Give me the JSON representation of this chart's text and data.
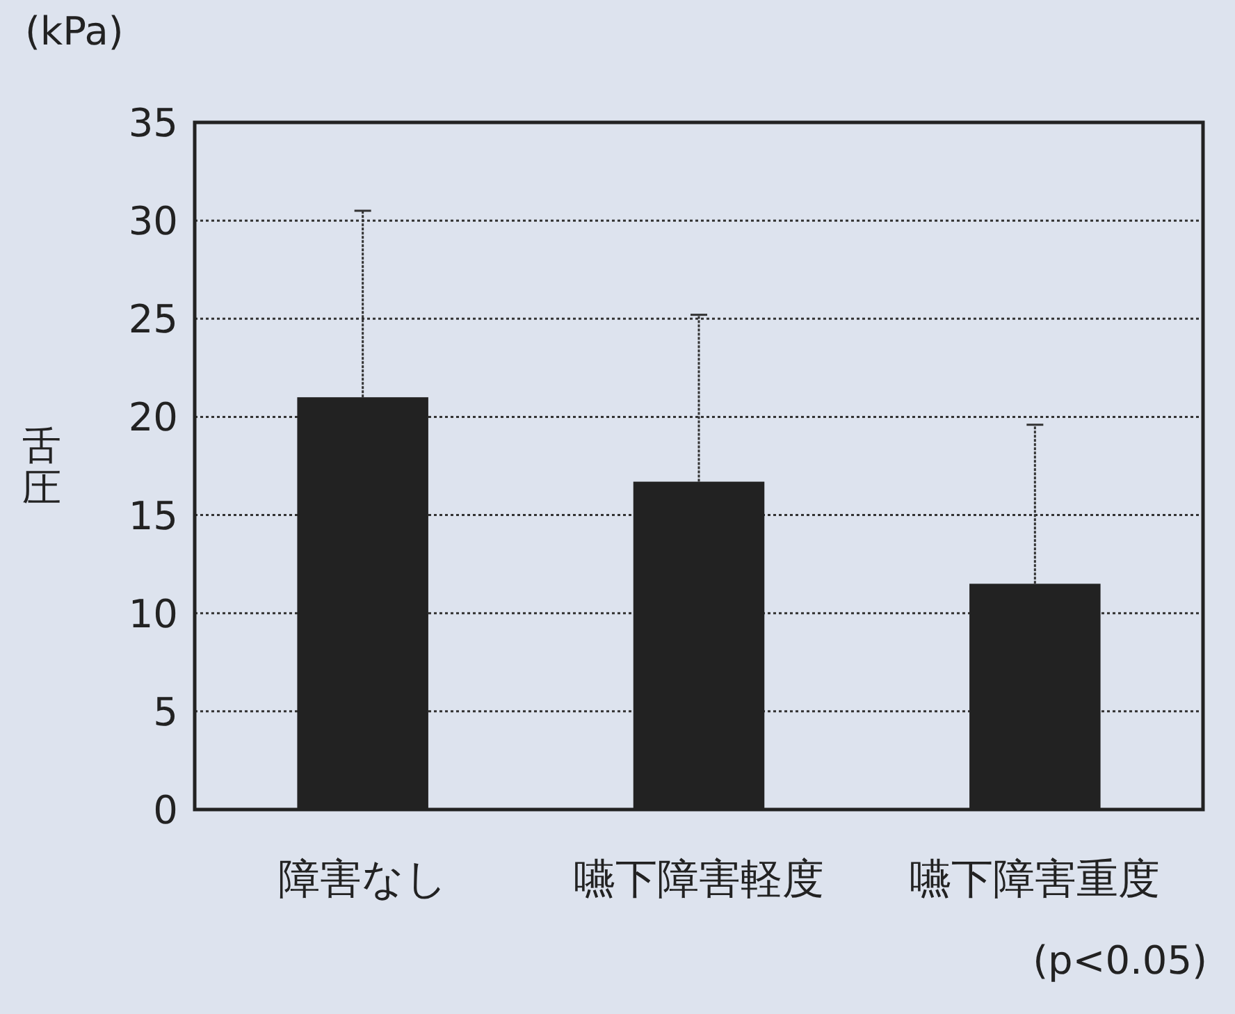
{
  "chart_data": {
    "type": "bar",
    "ylabel": "舌圧",
    "categories": [
      "障害なし",
      "嚥下障害軽度",
      "嚥下障害重度"
    ],
    "values": [
      21.0,
      16.7,
      11.5
    ],
    "errors": [
      [
        21.0,
        30.5
      ],
      [
        16.7,
        25.2
      ],
      [
        11.5,
        19.6
      ]
    ],
    "color": "#222222",
    "ylim": [
      0,
      35
    ],
    "yticks": [
      0,
      5,
      10,
      15,
      20,
      25,
      30,
      35
    ],
    "grid": "y",
    "annotations": [
      "(kPa)",
      "(p<0.05)"
    ]
  }
}
